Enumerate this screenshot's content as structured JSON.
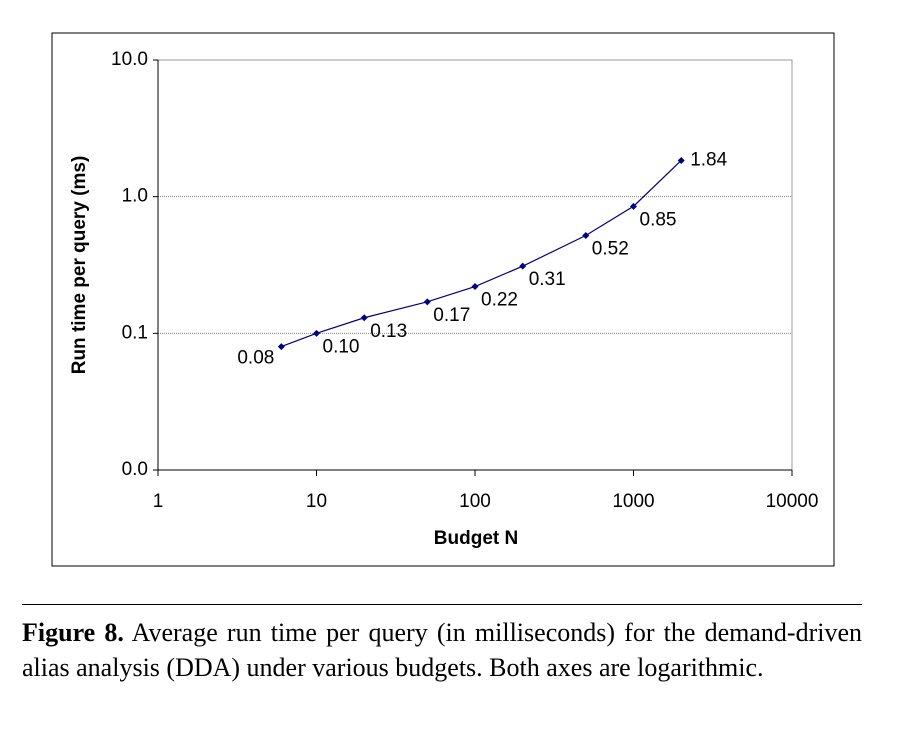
{
  "chart_data": {
    "type": "line",
    "x_label": "Budget N",
    "y_label": "Run time per query (ms)",
    "x": [
      6,
      10,
      20,
      50,
      100,
      200,
      500,
      1000,
      2000
    ],
    "series": [
      {
        "color": "#000080",
        "values": [
          0.08,
          0.1,
          0.13,
          0.17,
          0.22,
          0.31,
          0.52,
          0.85,
          1.84
        ],
        "value_labels": [
          "0.08",
          "0.10",
          "0.13",
          "0.17",
          "0.22",
          "0.31",
          "0.52",
          "0.85",
          "1.84"
        ]
      }
    ],
    "xlim": [
      1,
      10000
    ],
    "xticks": [
      1,
      10,
      100,
      1000,
      10000
    ],
    "ylim": [
      0.01,
      10
    ],
    "yticks": [
      {
        "value": 0.01,
        "label": "0.0"
      },
      0.1,
      {
        "value": 1,
        "label": "1.0"
      },
      {
        "value": 10,
        "label": "10.0"
      }
    ],
    "xscale": "log",
    "yscale": "log",
    "grid": true
  },
  "caption": {
    "label": "Figure 8.",
    "text": "Average run time per query (in milliseconds) for the demand-driven alias analysis (DDA) under various budgets. Both axes are logarithmic."
  }
}
